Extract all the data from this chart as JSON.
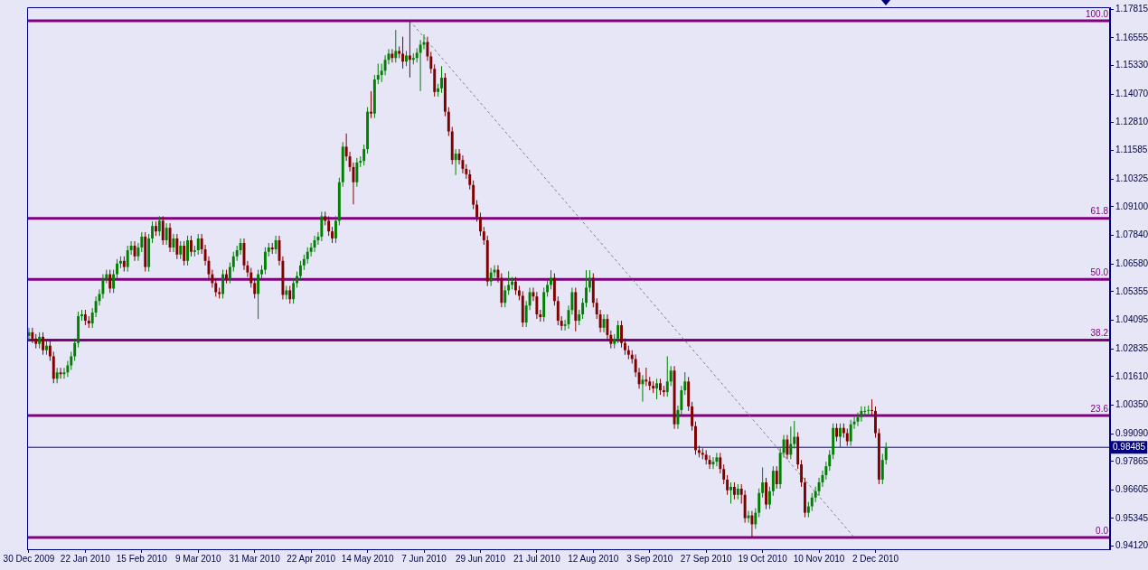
{
  "chart_data": {
    "type": "candlestick",
    "categories": [
      "30 Dec 2009",
      null,
      null,
      null,
      null,
      null,
      null,
      null,
      null,
      null,
      null,
      null,
      null,
      null,
      null,
      null,
      "22 Jan 2010",
      null,
      null,
      null,
      null,
      null,
      null,
      null,
      null,
      null,
      null,
      null,
      null,
      null,
      null,
      null,
      "15 Feb 2010",
      null,
      null,
      null,
      null,
      null,
      null,
      null,
      null,
      null,
      null,
      null,
      null,
      null,
      null,
      null,
      "9 Mar 2010",
      null,
      null,
      null,
      null,
      null,
      null,
      null,
      null,
      null,
      null,
      null,
      null,
      null,
      null,
      null,
      "31 Mar 2010",
      null,
      null,
      null,
      null,
      null,
      null,
      null,
      null,
      null,
      null,
      null,
      null,
      null,
      null,
      null,
      "22 Apr 2010",
      null,
      null,
      null,
      null,
      null,
      null,
      null,
      null,
      null,
      null,
      null,
      null,
      null,
      null,
      null,
      "14 May 2010",
      null,
      null,
      null,
      null,
      null,
      null,
      null,
      null,
      null,
      null,
      null,
      null,
      null,
      null,
      null,
      "7 Jun 2010",
      null,
      null,
      null,
      null,
      null,
      null,
      null,
      null,
      null,
      null,
      null,
      null,
      null,
      null,
      null,
      "29 Jun 2010",
      null,
      null,
      null,
      null,
      null,
      null,
      null,
      null,
      null,
      null,
      null,
      null,
      null,
      null,
      null,
      "21 Jul 2010",
      null,
      null,
      null,
      null,
      null,
      null,
      null,
      null,
      null,
      null,
      null,
      null,
      null,
      null,
      null,
      "12 Aug 2010",
      null,
      null,
      null,
      null,
      null,
      null,
      null,
      null,
      null,
      null,
      null,
      null,
      null,
      null,
      null,
      "3 Sep 2010",
      null,
      null,
      null,
      null,
      null,
      null,
      null,
      null,
      null,
      null,
      null,
      null,
      null,
      null,
      null,
      "27 Sep 2010",
      null,
      null,
      null,
      null,
      null,
      null,
      null,
      null,
      null,
      null,
      null,
      null,
      null,
      null,
      null,
      "19 Oct 2010",
      null,
      null,
      null,
      null,
      null,
      null,
      null,
      null,
      null,
      null,
      null,
      null,
      null,
      null,
      null,
      "10 Nov 2010",
      null,
      null,
      null,
      null,
      null,
      null,
      null,
      null,
      null,
      null,
      null,
      null,
      null,
      null,
      null,
      "2 Dec 2010",
      null,
      null,
      null,
      null,
      null,
      null,
      null,
      null,
      null,
      null,
      null,
      null,
      null,
      null,
      null,
      null,
      null,
      null,
      null,
      null,
      null,
      null,
      null,
      null,
      null,
      null,
      null,
      null,
      null,
      null,
      null,
      null,
      null,
      null,
      null,
      null,
      null,
      null,
      null,
      null,
      null,
      null,
      null,
      null,
      null,
      null,
      null,
      null,
      null,
      null,
      null,
      null,
      null,
      null,
      null,
      null,
      null,
      null,
      null,
      null,
      null,
      null,
      null,
      null,
      null,
      null
    ],
    "ohlc": [
      [
        1.034,
        1.0376,
        1.032,
        1.0356
      ],
      [
        1.0356,
        1.0376,
        1.0308,
        1.0328
      ],
      [
        1.0328,
        1.0348,
        1.0285,
        1.0305
      ],
      [
        1.0305,
        1.0356,
        1.0285,
        1.0336
      ],
      [
        1.0336,
        1.0356,
        1.0257,
        1.0277
      ],
      [
        1.0277,
        1.0317,
        1.0257,
        1.0297
      ],
      [
        1.0297,
        1.0317,
        1.023,
        1.025
      ],
      [
        1.025,
        1.027,
        1.0131,
        1.0151
      ],
      [
        1.0151,
        1.0199,
        1.0131,
        1.0179
      ],
      [
        1.0179,
        1.0199,
        1.0151,
        1.0171
      ],
      [
        1.0171,
        1.0199,
        1.0151,
        1.0179
      ],
      [
        1.0179,
        1.023,
        1.0159,
        1.021
      ],
      [
        1.021,
        1.027,
        1.019,
        1.025
      ],
      [
        1.025,
        1.0329,
        1.023,
        1.0309
      ],
      [
        1.0309,
        1.0447,
        1.0289,
        1.0427
      ],
      [
        1.0427,
        1.0455,
        1.0407,
        1.0435
      ],
      [
        1.0435,
        1.0455,
        1.0387,
        1.0407
      ],
      [
        1.0407,
        1.0427,
        1.0375,
        1.0395
      ],
      [
        1.0395,
        1.0463,
        1.0375,
        1.0443
      ],
      [
        1.0443,
        1.0514,
        1.0423,
        1.0494
      ],
      [
        1.0494,
        1.0545,
        1.0474,
        1.0525
      ],
      [
        1.0525,
        1.0612,
        1.0505,
        1.0592
      ],
      [
        1.0592,
        1.0632,
        1.0572,
        1.0612
      ],
      [
        1.0612,
        1.0632,
        1.0529,
        1.0549
      ],
      [
        1.0549,
        1.0632,
        1.0529,
        1.0612
      ],
      [
        1.0612,
        1.0679,
        1.0592,
        1.0659
      ],
      [
        1.0659,
        1.0691,
        1.0639,
        1.0671
      ],
      [
        1.0671,
        1.0691,
        1.0624,
        1.0644
      ],
      [
        1.0644,
        1.0738,
        1.0624,
        1.0718
      ],
      [
        1.0718,
        1.0758,
        1.0698,
        1.0738
      ],
      [
        1.0738,
        1.0758,
        1.0671,
        1.0691
      ],
      [
        1.0691,
        1.075,
        1.0671,
        1.073
      ],
      [
        1.073,
        1.0798,
        1.071,
        1.0778
      ],
      [
        1.0778,
        1.0798,
        1.0624,
        1.0644
      ],
      [
        1.0644,
        1.079,
        1.0624,
        1.077
      ],
      [
        1.077,
        1.0845,
        1.075,
        1.0825
      ],
      [
        1.0825,
        1.0845,
        1.0781,
        1.0801
      ],
      [
        1.0801,
        1.0868,
        1.0781,
        1.0848
      ],
      [
        1.0848,
        1.0868,
        1.0742,
        1.0762
      ],
      [
        1.0762,
        1.0837,
        1.0742,
        1.0817
      ],
      [
        1.0817,
        1.0837,
        1.071,
        1.073
      ],
      [
        1.073,
        1.079,
        1.071,
        1.077
      ],
      [
        1.077,
        1.079,
        1.0679,
        1.0699
      ],
      [
        1.0699,
        1.0758,
        1.0679,
        1.0738
      ],
      [
        1.0738,
        1.0758,
        1.0651,
        1.0671
      ],
      [
        1.0671,
        1.0782,
        1.0651,
        1.0762
      ],
      [
        1.0762,
        1.0782,
        1.0691,
        1.0711
      ],
      [
        1.0711,
        1.0738,
        1.0691,
        1.0718
      ],
      [
        1.0718,
        1.079,
        1.0698,
        1.077
      ],
      [
        1.077,
        1.079,
        1.0702,
        1.0722
      ],
      [
        1.0722,
        1.0742,
        1.0651,
        1.0671
      ],
      [
        1.0671,
        1.0691,
        1.0592,
        1.0612
      ],
      [
        1.0612,
        1.0632,
        1.0553,
        1.0573
      ],
      [
        1.0573,
        1.0593,
        1.0513,
        1.0533
      ],
      [
        1.0533,
        1.0553,
        1.0505,
        1.0525
      ],
      [
        1.0525,
        1.0632,
        1.0505,
        1.0612
      ],
      [
        1.0612,
        1.0632,
        1.0572,
        1.0592
      ],
      [
        1.0592,
        1.0664,
        1.0572,
        1.0644
      ],
      [
        1.0644,
        1.0711,
        1.0624,
        1.0691
      ],
      [
        1.0691,
        1.0738,
        1.0671,
        1.0718
      ],
      [
        1.0718,
        1.077,
        1.0698,
        1.075
      ],
      [
        1.075,
        1.077,
        1.0631,
        1.0651
      ],
      [
        1.0651,
        1.0671,
        1.06,
        1.062
      ],
      [
        1.062,
        1.064,
        1.0553,
        1.0573
      ],
      [
        1.0573,
        1.0593,
        1.0505,
        1.0525
      ],
      [
        1.0525,
        1.0632,
        1.0415,
        1.0612
      ],
      [
        1.0612,
        1.0652,
        1.0592,
        1.0632
      ],
      [
        1.0632,
        1.0731,
        1.0612,
        1.0711
      ],
      [
        1.0711,
        1.075,
        1.0691,
        1.073
      ],
      [
        1.073,
        1.075,
        1.0702,
        1.0722
      ],
      [
        1.0722,
        1.0782,
        1.0702,
        1.0762
      ],
      [
        1.0762,
        1.0782,
        1.0651,
        1.0671
      ],
      [
        1.0671,
        1.0691,
        1.0501,
        1.0521
      ],
      [
        1.0521,
        1.0561,
        1.0501,
        1.0541
      ],
      [
        1.0541,
        1.0561,
        1.0482,
        1.0502
      ],
      [
        1.0502,
        1.0593,
        1.0482,
        1.0573
      ],
      [
        1.0573,
        1.0624,
        1.0553,
        1.0604
      ],
      [
        1.0604,
        1.0671,
        1.0584,
        1.0651
      ],
      [
        1.0651,
        1.0699,
        1.0631,
        1.0679
      ],
      [
        1.0679,
        1.0731,
        1.0659,
        1.0711
      ],
      [
        1.0711,
        1.075,
        1.0691,
        1.073
      ],
      [
        1.073,
        1.0782,
        1.071,
        1.0762
      ],
      [
        1.0762,
        1.0798,
        1.0742,
        1.0778
      ],
      [
        1.0778,
        1.0888,
        1.0758,
        1.0868
      ],
      [
        1.0868,
        1.0888,
        1.0828,
        1.0848
      ],
      [
        1.0848,
        1.0868,
        1.0781,
        1.0801
      ],
      [
        1.0801,
        1.0821,
        1.075,
        1.077
      ],
      [
        1.077,
        1.0868,
        1.075,
        1.0848
      ],
      [
        1.0848,
        1.1038,
        1.0828,
        1.1018
      ],
      [
        1.1018,
        1.1195,
        1.0998,
        1.1175
      ],
      [
        1.1175,
        1.1233,
        1.1112,
        1.1132
      ],
      [
        1.1132,
        1.1152,
        1.1065,
        1.1085
      ],
      [
        1.1085,
        1.1105,
        1.092,
        1.1018
      ],
      [
        1.1018,
        1.1125,
        1.0998,
        1.1105
      ],
      [
        1.1105,
        1.1132,
        1.1085,
        1.1112
      ],
      [
        1.1112,
        1.1184,
        1.1092,
        1.1164
      ],
      [
        1.1164,
        1.1349,
        1.1144,
        1.1329
      ],
      [
        1.1329,
        1.142,
        1.1301,
        1.1321
      ],
      [
        1.1321,
        1.1491,
        1.1301,
        1.1471
      ],
      [
        1.1471,
        1.1541,
        1.1451,
        1.1491
      ],
      [
        1.1491,
        1.1541,
        1.146,
        1.151
      ],
      [
        1.151,
        1.1578,
        1.149,
        1.1558
      ],
      [
        1.1558,
        1.1605,
        1.1538,
        1.1585
      ],
      [
        1.1585,
        1.1605,
        1.1546,
        1.1566
      ],
      [
        1.1566,
        1.169,
        1.1546,
        1.1597
      ],
      [
        1.1597,
        1.1617,
        1.1565,
        1.1585
      ],
      [
        1.1585,
        1.166,
        1.152,
        1.155
      ],
      [
        1.155,
        1.1597,
        1.153,
        1.1577
      ],
      [
        1.1577,
        1.173,
        1.148,
        1.1558
      ],
      [
        1.1558,
        1.1586,
        1.1538,
        1.1566
      ],
      [
        1.1566,
        1.1609,
        1.1546,
        1.1589
      ],
      [
        1.1589,
        1.1645,
        1.142,
        1.1625
      ],
      [
        1.1625,
        1.167,
        1.1605,
        1.1636
      ],
      [
        1.1636,
        1.166,
        1.1553,
        1.1573
      ],
      [
        1.1573,
        1.1593,
        1.1498,
        1.1518
      ],
      [
        1.1518,
        1.1538,
        1.1396,
        1.1416
      ],
      [
        1.1416,
        1.1452,
        1.1396,
        1.1432
      ],
      [
        1.1432,
        1.153,
        1.1412,
        1.1479
      ],
      [
        1.1479,
        1.1499,
        1.1309,
        1.1329
      ],
      [
        1.1329,
        1.1349,
        1.1222,
        1.1242
      ],
      [
        1.1242,
        1.1262,
        1.1096,
        1.1116
      ],
      [
        1.1116,
        1.1164,
        1.105,
        1.1144
      ],
      [
        1.1144,
        1.1164,
        1.1096,
        1.1116
      ],
      [
        1.1116,
        1.1136,
        1.1057,
        1.1077
      ],
      [
        1.1077,
        1.1097,
        1.1033,
        1.1053
      ],
      [
        1.1053,
        1.1073,
        1.0986,
        1.1006
      ],
      [
        1.1006,
        1.1026,
        1.0899,
        1.0919
      ],
      [
        1.0919,
        1.0939,
        1.0844,
        1.0864
      ],
      [
        1.0864,
        1.0884,
        1.0781,
        1.0801
      ],
      [
        1.0801,
        1.0821,
        1.0742,
        1.0762
      ],
      [
        1.0762,
        1.0782,
        1.056,
        1.058
      ],
      [
        1.058,
        1.064,
        1.056,
        1.062
      ],
      [
        1.062,
        1.0652,
        1.06,
        1.0632
      ],
      [
        1.0632,
        1.0652,
        1.0576,
        1.0596
      ],
      [
        1.0596,
        1.0616,
        1.0466,
        1.0486
      ],
      [
        1.0486,
        1.0561,
        1.0466,
        1.0541
      ],
      [
        1.0541,
        1.0625,
        1.0521,
        1.0565
      ],
      [
        1.0565,
        1.06,
        1.0545,
        1.058
      ],
      [
        1.058,
        1.06,
        1.0521,
        1.0541
      ],
      [
        1.0541,
        1.0561,
        1.0497,
        1.0517
      ],
      [
        1.0517,
        1.0537,
        1.0379,
        1.0399
      ],
      [
        1.0399,
        1.0494,
        1.0379,
        1.0474
      ],
      [
        1.0474,
        1.0553,
        1.0454,
        1.0533
      ],
      [
        1.0533,
        1.0553,
        1.0494,
        1.0514
      ],
      [
        1.0514,
        1.0534,
        1.0415,
        1.0435
      ],
      [
        1.0435,
        1.0455,
        1.0403,
        1.0423
      ],
      [
        1.0423,
        1.0553,
        1.0403,
        1.0533
      ],
      [
        1.0533,
        1.0585,
        1.0513,
        1.0565
      ],
      [
        1.0565,
        1.063,
        1.0545,
        1.0596
      ],
      [
        1.0596,
        1.0616,
        1.0474,
        1.0494
      ],
      [
        1.0494,
        1.0514,
        1.0387,
        1.0407
      ],
      [
        1.0407,
        1.0427,
        1.0364,
        1.0384
      ],
      [
        1.0384,
        1.0411,
        1.0364,
        1.0391
      ],
      [
        1.0391,
        1.0474,
        1.0371,
        1.0454
      ],
      [
        1.0454,
        1.0553,
        1.0434,
        1.0533
      ],
      [
        1.0533,
        1.0553,
        1.036,
        1.0407
      ],
      [
        1.0407,
        1.0455,
        1.0387,
        1.0435
      ],
      [
        1.0435,
        1.0506,
        1.0415,
        1.0486
      ],
      [
        1.0486,
        1.063,
        1.0466,
        1.0553
      ],
      [
        1.0553,
        1.063,
        1.0533,
        1.0596
      ],
      [
        1.0596,
        1.0616,
        1.0466,
        1.0486
      ],
      [
        1.0486,
        1.0506,
        1.0415,
        1.0435
      ],
      [
        1.0435,
        1.0455,
        1.0356,
        1.0376
      ],
      [
        1.0376,
        1.0435,
        1.0356,
        1.0415
      ],
      [
        1.0415,
        1.0435,
        1.0324,
        1.0344
      ],
      [
        1.0344,
        1.0364,
        1.0285,
        1.0305
      ],
      [
        1.0305,
        1.0348,
        1.0285,
        1.0328
      ],
      [
        1.0328,
        1.0407,
        1.0308,
        1.0387
      ],
      [
        1.0387,
        1.0407,
        1.0289,
        1.0309
      ],
      [
        1.0309,
        1.0329,
        1.0257,
        1.0277
      ],
      [
        1.0277,
        1.0297,
        1.0237,
        1.0257
      ],
      [
        1.0257,
        1.0277,
        1.0218,
        1.0238
      ],
      [
        1.0238,
        1.0258,
        1.0159,
        1.0179
      ],
      [
        1.0179,
        1.0199,
        1.0107,
        1.0127
      ],
      [
        1.0127,
        1.0167,
        1.005,
        1.0147
      ],
      [
        1.0147,
        1.02,
        1.0119,
        1.0139
      ],
      [
        1.0139,
        1.0159,
        1.01,
        1.012
      ],
      [
        1.012,
        1.014,
        1.0088,
        1.0108
      ],
      [
        1.0108,
        1.0151,
        1.006,
        1.0131
      ],
      [
        1.0131,
        1.0151,
        1.008,
        1.01
      ],
      [
        1.01,
        1.012,
        1.0072,
        1.0092
      ],
      [
        1.0092,
        1.025,
        1.0072,
        1.0139
      ],
      [
        1.0139,
        1.0207,
        1.0119,
        1.0187
      ],
      [
        1.0187,
        1.0207,
        0.993,
        0.995
      ],
      [
        0.995,
        1.0033,
        0.993,
        1.0013
      ],
      [
        1.0013,
        1.012,
        0.9993,
        1.01
      ],
      [
        1.01,
        1.018,
        1.008,
        1.0139
      ],
      [
        1.0139,
        1.0159,
        1.0009,
        1.0029
      ],
      [
        1.0029,
        1.0049,
        0.9922,
        0.9942
      ],
      [
        0.9942,
        0.9962,
        0.9816,
        0.9836
      ],
      [
        0.9836,
        0.9856,
        0.9804,
        0.9824
      ],
      [
        0.9824,
        0.9844,
        0.9796,
        0.9816
      ],
      [
        0.9816,
        0.9836,
        0.9773,
        0.9793
      ],
      [
        0.9793,
        0.9813,
        0.9753,
        0.9773
      ],
      [
        0.9773,
        0.9805,
        0.9753,
        0.9785
      ],
      [
        0.9785,
        0.9824,
        0.9765,
        0.9804
      ],
      [
        0.9804,
        0.9824,
        0.9733,
        0.9753
      ],
      [
        0.9753,
        0.9773,
        0.9686,
        0.9706
      ],
      [
        0.9706,
        0.9726,
        0.9639,
        0.9659
      ],
      [
        0.9659,
        0.9694,
        0.96,
        0.9674
      ],
      [
        0.9674,
        0.9694,
        0.9619,
        0.9639
      ],
      [
        0.9639,
        0.9686,
        0.9619,
        0.9666
      ],
      [
        0.9666,
        0.9686,
        0.96,
        0.9639
      ],
      [
        0.9639,
        0.9659,
        0.9516,
        0.9536
      ],
      [
        0.9536,
        0.9568,
        0.9516,
        0.9548
      ],
      [
        0.9548,
        0.9568,
        0.9451,
        0.9509
      ],
      [
        0.9509,
        0.958,
        0.9489,
        0.956
      ],
      [
        0.956,
        0.9667,
        0.954,
        0.9647
      ],
      [
        0.9647,
        0.976,
        0.9627,
        0.9694
      ],
      [
        0.9694,
        0.9714,
        0.9576,
        0.9596
      ],
      [
        0.9596,
        0.9675,
        0.9576,
        0.9655
      ],
      [
        0.9655,
        0.9765,
        0.9635,
        0.9745
      ],
      [
        0.9745,
        0.9765,
        0.9666,
        0.9686
      ],
      [
        0.9686,
        0.9844,
        0.9666,
        0.9824
      ],
      [
        0.9824,
        0.9903,
        0.9804,
        0.9883
      ],
      [
        0.9883,
        0.9903,
        0.9796,
        0.9816
      ],
      [
        0.9816,
        0.994,
        0.9796,
        0.9863
      ],
      [
        0.9863,
        0.9965,
        0.9843,
        0.9895
      ],
      [
        0.9895,
        0.9915,
        0.9753,
        0.9773
      ],
      [
        0.9773,
        0.9793,
        0.9674,
        0.9694
      ],
      [
        0.9694,
        0.9714,
        0.954,
        0.956
      ],
      [
        0.956,
        0.9608,
        0.954,
        0.9588
      ],
      [
        0.9588,
        0.9647,
        0.9568,
        0.9627
      ],
      [
        0.9627,
        0.9675,
        0.9607,
        0.9655
      ],
      [
        0.9655,
        0.9714,
        0.9635,
        0.9694
      ],
      [
        0.9694,
        0.9746,
        0.9674,
        0.9726
      ],
      [
        0.9726,
        0.9785,
        0.9706,
        0.9765
      ],
      [
        0.9765,
        0.9836,
        0.9745,
        0.9816
      ],
      [
        0.9816,
        0.9954,
        0.9796,
        0.9934
      ],
      [
        0.9934,
        0.9954,
        0.9875,
        0.9895
      ],
      [
        0.9895,
        0.9954,
        0.9849,
        0.9934
      ],
      [
        0.9934,
        0.9954,
        0.9891,
        0.9911
      ],
      [
        0.9911,
        0.9931,
        0.9855,
        0.9875
      ],
      [
        0.9875,
        0.997,
        0.9855,
        0.995
      ],
      [
        0.995,
        0.9982,
        0.993,
        0.9962
      ],
      [
        0.9962,
        1.0002,
        0.9942,
        0.9982
      ],
      [
        0.9982,
        1.0029,
        0.9962,
        1.0009
      ],
      [
        1.0009,
        1.0029,
        0.9989,
        1.0009
      ],
      [
        1.0009,
        1.0033,
        0.9989,
        1.0013
      ],
      [
        1.0013,
        1.006,
        0.9989,
        1.0009
      ],
      [
        1.0009,
        1.0029,
        0.9891,
        0.9911
      ],
      [
        0.9911,
        0.9931,
        0.9686,
        0.9706
      ],
      [
        0.9706,
        0.982,
        0.9686,
        0.9793
      ],
      [
        0.9793,
        0.987,
        0.9773,
        0.98485
      ],
      null,
      null,
      null,
      null,
      null,
      null,
      null,
      null,
      null,
      null,
      null,
      null,
      null,
      null,
      null,
      null,
      null,
      null,
      null,
      null,
      null,
      null,
      null,
      null,
      null,
      null,
      null,
      null,
      null,
      null,
      null,
      null,
      null,
      null,
      null,
      null,
      null,
      null,
      null,
      null,
      null,
      null,
      null,
      null,
      null,
      null,
      null,
      null,
      null,
      null,
      null,
      null,
      null,
      null,
      null,
      null,
      null,
      null,
      null,
      null,
      null,
      null,
      null
    ],
    "colors": [
      "#008000",
      "#800000",
      "#800000",
      "#008000",
      "#800000",
      "#008000",
      "#800000",
      "#800000",
      "#008000",
      "#800000",
      "#008000",
      "#008000",
      "#008000",
      "#008000",
      "#008000",
      "#008000",
      "#800000",
      "#800000",
      "#008000",
      "#008000",
      "#008000",
      "#008000",
      "#008000",
      "#800000",
      "#008000",
      "#008000",
      "#008000",
      "#800000",
      "#008000",
      "#008000",
      "#800000",
      "#008000",
      "#008000",
      "#800000",
      "#008000",
      "#008000",
      "#800000",
      "#008000",
      "#800000",
      "#008000",
      "#800000",
      "#008000",
      "#800000",
      "#008000",
      "#800000",
      "#008000",
      "#800000",
      "#008000",
      "#008000",
      "#800000",
      "#800000",
      "#800000",
      "#800000",
      "#800000",
      "#800000",
      "#008000",
      "#800000",
      "#008000",
      "#008000",
      "#008000",
      "#008000",
      "#800000",
      "#800000",
      "#800000",
      "#800000",
      "#008000",
      "#008000",
      "#008000",
      "#008000",
      "#800000",
      "#008000",
      "#800000",
      "#800000",
      "#008000",
      "#800000",
      "#008000",
      "#008000",
      "#008000",
      "#008000",
      "#008000",
      "#008000",
      "#008000",
      "#008000",
      "#008000",
      "#800000",
      "#800000",
      "#800000",
      "#008000",
      "#008000",
      "#008000",
      "#800000",
      "#800000",
      "#800000",
      "#008000",
      "#008000",
      "#008000",
      "#008000",
      "#800000",
      "#008000",
      "#008000",
      "#008000",
      "#008000",
      "#008000",
      "#800000",
      "#008000",
      "#800000",
      "#800000",
      "#008000",
      "#800000",
      "#008000",
      "#008000",
      "#008000",
      "#008000",
      "#800000",
      "#800000",
      "#800000",
      "#008000",
      "#008000",
      "#800000",
      "#800000",
      "#800000",
      "#008000",
      "#800000",
      "#800000",
      "#800000",
      "#800000",
      "#800000",
      "#800000",
      "#800000",
      "#800000",
      "#800000",
      "#008000",
      "#008000",
      "#800000",
      "#800000",
      "#008000",
      "#008000",
      "#008000",
      "#800000",
      "#800000",
      "#800000",
      "#008000",
      "#008000",
      "#800000",
      "#800000",
      "#800000",
      "#008000",
      "#008000",
      "#008000",
      "#800000",
      "#800000",
      "#800000",
      "#008000",
      "#008000",
      "#008000",
      "#800000",
      "#008000",
      "#008000",
      "#008000",
      "#008000",
      "#800000",
      "#800000",
      "#800000",
      "#008000",
      "#800000",
      "#800000",
      "#008000",
      "#008000",
      "#800000",
      "#800000",
      "#800000",
      "#800000",
      "#800000",
      "#800000",
      "#008000",
      "#800000",
      "#800000",
      "#800000",
      "#008000",
      "#800000",
      "#800000",
      "#008000",
      "#008000",
      "#800000",
      "#008000",
      "#008000",
      "#008000",
      "#800000",
      "#800000",
      "#800000",
      "#800000",
      "#800000",
      "#800000",
      "#800000",
      "#008000",
      "#008000",
      "#800000",
      "#800000",
      "#800000",
      "#008000",
      "#800000",
      "#008000",
      "#800000",
      "#800000",
      "#008000",
      "#800000",
      "#008000",
      "#008000",
      "#008000",
      "#800000",
      "#008000",
      "#008000",
      "#800000",
      "#008000",
      "#008000",
      "#800000",
      "#008000",
      "#008000",
      "#800000",
      "#800000",
      "#800000",
      "#008000",
      "#008000",
      "#008000",
      "#008000",
      "#008000",
      "#008000",
      "#008000",
      "#008000",
      "#800000",
      "#008000",
      "#800000",
      "#800000",
      "#008000",
      "#008000",
      "#008000",
      "#008000",
      "#008000",
      "#008000",
      "#800000",
      "#800000",
      "#800000",
      "#008000",
      "#008000",
      null,
      null,
      null,
      null,
      null,
      null,
      null,
      null,
      null,
      null,
      null,
      null,
      null,
      null,
      null,
      null,
      null,
      null,
      null,
      null,
      null,
      null,
      null,
      null,
      null,
      null,
      null,
      null,
      null,
      null,
      null,
      null,
      null,
      null,
      null,
      null,
      null,
      null,
      null,
      null,
      null,
      null,
      null,
      null,
      null,
      null,
      null,
      null,
      null,
      null,
      null,
      null,
      null,
      null,
      null,
      null,
      null,
      null,
      null,
      null,
      null,
      null,
      null
    ],
    "series": [
      {
        "type": "line",
        "color": "#808080",
        "line_style": "dashed",
        "values": [
          null,
          null,
          null,
          null,
          null,
          null,
          null,
          null,
          null,
          null,
          null,
          null,
          null,
          null,
          null,
          null,
          null,
          null,
          null,
          null,
          null,
          null,
          null,
          null,
          null,
          null,
          null,
          null,
          null,
          null,
          null,
          null,
          null,
          null,
          null,
          null,
          null,
          null,
          null,
          null,
          null,
          null,
          null,
          null,
          null,
          null,
          null,
          null,
          null,
          null,
          null,
          null,
          null,
          null,
          null,
          null,
          null,
          null,
          null,
          null,
          null,
          null,
          null,
          null,
          null,
          null,
          null,
          null,
          null,
          null,
          null,
          null,
          null,
          null,
          null,
          null,
          null,
          null,
          null,
          null,
          null,
          null,
          null,
          null,
          null,
          null,
          null,
          null,
          null,
          null,
          null,
          null,
          null,
          null,
          null,
          null,
          null,
          null,
          null,
          null,
          null,
          null,
          null,
          null,
          null,
          null,
          null,
          null,
          1.173,
          null,
          null,
          null,
          null,
          null,
          null,
          null,
          null,
          null,
          null,
          null,
          null,
          null,
          null,
          null,
          null,
          null,
          null,
          null,
          null,
          null,
          null,
          null,
          null,
          null,
          null,
          null,
          null,
          null,
          null,
          null,
          null,
          null,
          null,
          null,
          null,
          null,
          null,
          null,
          null,
          null,
          null,
          null,
          null,
          null,
          null,
          null,
          null,
          null,
          null,
          null,
          null,
          null,
          null,
          null,
          null,
          null,
          null,
          null,
          null,
          null,
          null,
          null,
          null,
          null,
          null,
          null,
          null,
          null,
          null,
          null,
          null,
          null,
          null,
          null,
          null,
          null,
          null,
          null,
          null,
          null,
          null,
          null,
          null,
          null,
          null,
          null,
          null,
          null,
          null,
          null,
          null,
          null,
          null,
          null,
          null,
          null,
          null,
          null,
          null,
          null,
          null,
          null,
          null,
          null,
          null,
          null,
          null,
          null,
          null,
          null,
          null,
          null,
          null,
          null,
          null,
          null,
          null,
          null,
          null,
          null,
          null,
          null,
          null,
          null,
          0.9451,
          null,
          null,
          null,
          null,
          null,
          null,
          null,
          null,
          null,
          null,
          null,
          null,
          null,
          null,
          null,
          null,
          null,
          null,
          null,
          null,
          null,
          null,
          null,
          null,
          null,
          null,
          null,
          null,
          null,
          null,
          null,
          null,
          null,
          null,
          null,
          null,
          null,
          null,
          null,
          null,
          null,
          null,
          null,
          null,
          null,
          null,
          null,
          null,
          null,
          null,
          null,
          null,
          null,
          null,
          null,
          null,
          null,
          null,
          null,
          null,
          null,
          null,
          null,
          null,
          null,
          null,
          null,
          null,
          null,
          null,
          null,
          null
        ]
      }
    ],
    "ylim": [
      0.9399,
      1.179
    ],
    "yticks": [
      1.17815,
      1.16555,
      {
        "value": 1.1533,
        "label": "1.15330"
      },
      {
        "value": 1.1407,
        "label": "1.14070"
      },
      {
        "value": 1.1281,
        "label": "1.12810"
      },
      1.11585,
      1.10325,
      {
        "value": 1.091,
        "label": "1.09100"
      },
      {
        "value": 1.0784,
        "label": "1.07840"
      },
      {
        "value": 1.0658,
        "label": "1.06580"
      },
      1.05355,
      1.04095,
      1.02835,
      {
        "value": 1.0161,
        "label": "1.01610"
      },
      {
        "value": 1.0035,
        "label": "1.00350"
      },
      {
        "value": 0.9909,
        "label": "0.99090"
      },
      0.97865,
      0.96605,
      0.95345,
      {
        "value": 0.9412,
        "label": "0.94120"
      }
    ],
    "ref_lines": [
      {
        "axis": "y",
        "value": 1.173,
        "color": "#800080"
      },
      {
        "axis": "y",
        "value": 1.0859,
        "color": "#800080"
      },
      {
        "axis": "y",
        "value": 1.059,
        "color": "#800080"
      },
      {
        "axis": "y",
        "value": 1.0322,
        "color": "#800080"
      },
      {
        "axis": "y",
        "value": 0.9989,
        "color": "#800080"
      },
      {
        "axis": "y",
        "value": 0.9451,
        "color": "#800080"
      },
      {
        "axis": "y",
        "value": 0.98485,
        "label": "0.98485",
        "color": "#000080"
      }
    ],
    "annotations": [
      {
        "text": "100.0",
        "y": 1.173
      },
      {
        "text": "61.8",
        "y": 1.0859
      },
      {
        "text": "50.0",
        "y": 1.059
      },
      {
        "text": "38.2",
        "y": 1.0322
      },
      {
        "text": "23.6",
        "y": 0.9989
      },
      {
        "text": "0.0",
        "y": 0.9451
      }
    ],
    "grid": false,
    "legend": false
  }
}
